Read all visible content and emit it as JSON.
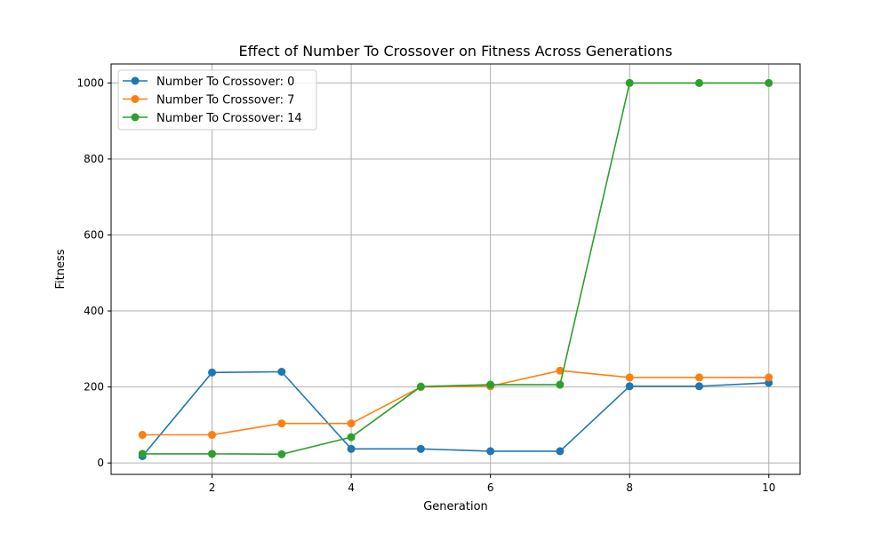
{
  "chart_data": {
    "type": "line",
    "title": "Effect of Number To Crossover on Fitness Across Generations",
    "xlabel": "Generation",
    "ylabel": "Fitness",
    "x": [
      1,
      2,
      3,
      4,
      5,
      6,
      7,
      8,
      9,
      10
    ],
    "xlim": [
      0.55,
      10.45
    ],
    "ylim": [
      -30,
      1050
    ],
    "xticks": [
      2,
      4,
      6,
      8,
      10
    ],
    "yticks": [
      0,
      200,
      400,
      600,
      800,
      1000
    ],
    "grid": true,
    "legend_position": "top-left",
    "series": [
      {
        "name": "Number To Crossover: 0",
        "color": "#1f77b4",
        "values": [
          18,
          238,
          240,
          37,
          37,
          31,
          31,
          202,
          202,
          211
        ]
      },
      {
        "name": "Number To Crossover: 7",
        "color": "#ff7f0e",
        "values": [
          74,
          74,
          104,
          104,
          200,
          202,
          243,
          225,
          225,
          225
        ]
      },
      {
        "name": "Number To Crossover: 14",
        "color": "#2ca02c",
        "values": [
          24,
          24,
          23,
          68,
          201,
          206,
          206,
          1000,
          1000,
          1000
        ]
      }
    ]
  }
}
